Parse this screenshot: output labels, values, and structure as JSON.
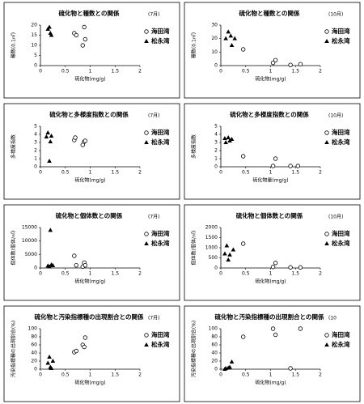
{
  "chart_data": [
    {
      "type": "scatter",
      "title": "硫化物と種数との関係",
      "period": "(7月)",
      "xlabel": "硫化物(mg/g)",
      "ylabel": "種数(0.1㎡)",
      "xlim": [
        0,
        2
      ],
      "ylim": [
        0,
        20
      ],
      "xticks": [
        0,
        0.5,
        1,
        1.5,
        2
      ],
      "yticks": [
        0,
        5,
        10,
        15,
        20
      ],
      "series": [
        {
          "name": "海田湾",
          "marker": "circle-open",
          "color": "#000000",
          "x": [
            0.68,
            0.72,
            0.85,
            0.88,
            0.9
          ],
          "values": [
            16,
            15,
            10,
            19,
            13
          ]
        },
        {
          "name": "松永湾",
          "marker": "triangle",
          "color": "#000000",
          "x": [
            0.15,
            0.18,
            0.2,
            0.22
          ],
          "values": [
            18,
            19,
            16,
            15
          ]
        }
      ]
    },
    {
      "type": "scatter",
      "title": "硫化物と種数との関係",
      "period": "(10月)",
      "xlabel": "硫化物(mg/g)",
      "ylabel": "種数(0.1㎡)",
      "xlim": [
        0,
        2
      ],
      "ylim": [
        0,
        30
      ],
      "xticks": [
        0,
        0.5,
        1,
        1.5,
        2
      ],
      "yticks": [
        0,
        10,
        20,
        30
      ],
      "series": [
        {
          "name": "海田湾",
          "marker": "circle-open",
          "color": "#000000",
          "x": [
            0.45,
            1.05,
            1.1,
            1.4,
            1.6
          ],
          "values": [
            12,
            2,
            4,
            0.5,
            1
          ]
        },
        {
          "name": "松永湾",
          "marker": "triangle",
          "color": "#000000",
          "x": [
            0.1,
            0.15,
            0.2,
            0.22,
            0.28
          ],
          "values": [
            20,
            25,
            22,
            15,
            20
          ]
        }
      ]
    },
    {
      "type": "scatter",
      "title": "硫化物と多様度指数との関係",
      "period": "(7月)",
      "xlabel": "硫化物(mg/g)",
      "ylabel": "多様度指数",
      "xlim": [
        0,
        2
      ],
      "ylim": [
        0,
        5
      ],
      "xticks": [
        0,
        0.5,
        1,
        1.5,
        2
      ],
      "yticks": [
        0,
        1,
        2,
        3,
        4,
        5
      ],
      "series": [
        {
          "name": "海田湾",
          "marker": "circle-open",
          "color": "#000000",
          "x": [
            0.68,
            0.7,
            0.85,
            0.88,
            0.9
          ],
          "values": [
            3.3,
            3.6,
            2.7,
            3.1,
            3.2
          ]
        },
        {
          "name": "松永湾",
          "marker": "triangle",
          "color": "#000000",
          "x": [
            0.12,
            0.15,
            0.18,
            0.2,
            0.22
          ],
          "values": [
            3.7,
            4.2,
            0.7,
            3.1,
            3.8
          ]
        }
      ]
    },
    {
      "type": "scatter",
      "title": "硫化物と多様度指数との関係",
      "period": "(10月)",
      "xlabel": "硫化物量(mg/g)",
      "ylabel": "多様度指数",
      "xlim": [
        0,
        2
      ],
      "ylim": [
        0,
        5
      ],
      "xticks": [
        0,
        0.5,
        1,
        1.5,
        2
      ],
      "yticks": [
        0,
        1,
        2,
        3,
        4,
        5
      ],
      "series": [
        {
          "name": "海田湾",
          "marker": "circle-open",
          "color": "#000000",
          "x": [
            0.45,
            1.05,
            1.1,
            1.4,
            1.55
          ],
          "values": [
            1.3,
            0.1,
            1,
            0.1,
            0.1
          ]
        },
        {
          "name": "松永湾",
          "marker": "triangle",
          "color": "#000000",
          "x": [
            0.08,
            0.1,
            0.15,
            0.18,
            0.22
          ],
          "values": [
            3.5,
            3,
            3.6,
            3.2,
            3.4
          ]
        }
      ]
    },
    {
      "type": "scatter",
      "title": "硫化物と個体数との関係",
      "period": "(7月)",
      "xlabel": "硫化物(mg/g)",
      "ylabel": "個体数(個体/㎡)",
      "xlim": [
        0,
        2
      ],
      "ylim": [
        0,
        15000
      ],
      "xticks": [
        0,
        0.5,
        1,
        1.5,
        2
      ],
      "yticks": [
        0,
        5000,
        10000,
        15000
      ],
      "series": [
        {
          "name": "海田湾",
          "marker": "circle-open",
          "color": "#000000",
          "x": [
            0.68,
            0.72,
            0.85,
            0.88,
            0.9
          ],
          "values": [
            4500,
            1000,
            500,
            2000,
            1000
          ]
        },
        {
          "name": "松永湾",
          "marker": "triangle",
          "color": "#000000",
          "x": [
            0.15,
            0.18,
            0.2,
            0.22,
            0.25
          ],
          "values": [
            800,
            500,
            14000,
            1200,
            900
          ]
        }
      ]
    },
    {
      "type": "scatter",
      "title": "硫化物と個体数との関係",
      "period": "(10月)",
      "xlabel": "硫化物(mg/g)",
      "ylabel": "個体数(個体/㎡)",
      "xlim": [
        0,
        2
      ],
      "ylim": [
        0,
        2000
      ],
      "xticks": [
        0,
        0.5,
        1,
        1.5,
        2
      ],
      "yticks": [
        0,
        500,
        1000,
        1500,
        2000
      ],
      "series": [
        {
          "name": "海田湾",
          "marker": "circle-open",
          "color": "#000000",
          "x": [
            0.45,
            1.05,
            1.1,
            1.4,
            1.6
          ],
          "values": [
            1200,
            50,
            250,
            30,
            30
          ]
        },
        {
          "name": "松永湾",
          "marker": "triangle",
          "color": "#000000",
          "x": [
            0.08,
            0.12,
            0.15,
            0.18,
            0.25
          ],
          "values": [
            700,
            1100,
            400,
            650,
            900
          ]
        }
      ]
    },
    {
      "type": "scatter",
      "title": "硫化物と汚染指標種の出現割合との関係",
      "period": "(7月)",
      "xlabel": "硫化物(mg/g)",
      "ylabel": "汚染指標種の出現割合(%)",
      "xlim": [
        0,
        2
      ],
      "ylim": [
        0,
        100
      ],
      "xticks": [
        0,
        0.5,
        1,
        1.5,
        2
      ],
      "yticks": [
        0,
        20,
        40,
        60,
        80,
        100
      ],
      "series": [
        {
          "name": "海田湾",
          "marker": "circle-open",
          "color": "#000000",
          "x": [
            0.68,
            0.72,
            0.85,
            0.88,
            0.9
          ],
          "values": [
            42,
            45,
            60,
            55,
            78
          ]
        },
        {
          "name": "松永湾",
          "marker": "triangle",
          "color": "#000000",
          "x": [
            0.15,
            0.18,
            0.2,
            0.22,
            0.25
          ],
          "values": [
            15,
            30,
            5,
            2,
            20
          ]
        }
      ]
    },
    {
      "type": "scatter",
      "title": "硫化物と汚染指標種の出現割合との関係",
      "period": "(10",
      "xlabel": "硫化物(mg/g)",
      "ylabel": "汚染指標種の出現割合(%)",
      "xlim": [
        0,
        2
      ],
      "ylim": [
        0,
        100
      ],
      "xticks": [
        0,
        0.5,
        1,
        1.5,
        2
      ],
      "yticks": [
        0,
        20,
        40,
        60,
        80,
        100
      ],
      "series": [
        {
          "name": "海田湾",
          "marker": "circle-open",
          "color": "#000000",
          "x": [
            0.45,
            1.05,
            1.1,
            1.4,
            1.6
          ],
          "values": [
            80,
            100,
            85,
            2,
            100
          ]
        },
        {
          "name": "松永湾",
          "marker": "triangle",
          "color": "#000000",
          "x": [
            0.08,
            0.1,
            0.15,
            0.18,
            0.22
          ],
          "values": [
            0,
            2,
            3,
            5,
            18
          ]
        }
      ]
    }
  ]
}
